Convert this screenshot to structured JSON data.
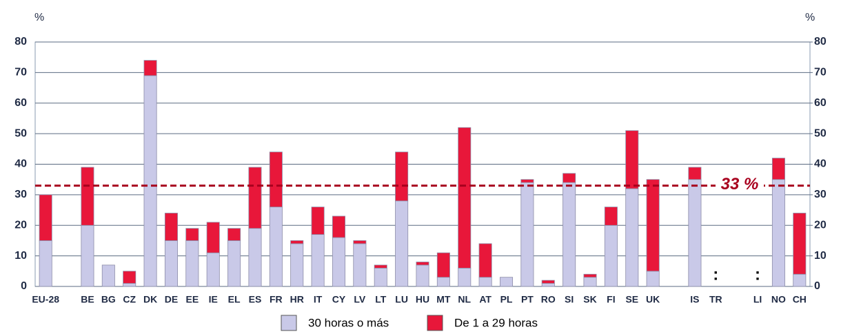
{
  "chart_data": {
    "type": "stacked_bar",
    "y_label": "%",
    "y2_label": "%",
    "categories": [
      "EU-28",
      null,
      "BE",
      "BG",
      "CZ",
      "DK",
      "DE",
      "EE",
      "IE",
      "EL",
      "ES",
      "FR",
      "HR",
      "IT",
      "CY",
      "LV",
      "LT",
      "LU",
      "HU",
      "MT",
      "NL",
      "AT",
      "PL",
      "PT",
      "RO",
      "SI",
      "SK",
      "FI",
      "SE",
      "UK",
      null,
      "IS",
      "TR",
      null,
      "LI",
      "NO",
      "CH"
    ],
    "series": [
      {
        "name": "30 horas o más",
        "color": "#c9c9e8",
        "values": [
          15,
          null,
          20,
          7,
          1,
          69,
          15,
          15,
          11,
          15,
          19,
          26,
          14,
          17,
          16,
          14,
          6,
          28,
          7,
          3,
          6,
          3,
          3,
          34,
          1,
          34,
          3,
          20,
          32,
          5,
          null,
          35,
          null,
          null,
          null,
          35,
          4
        ],
        "value_labels": [
          null,
          null,
          null,
          null,
          null,
          null,
          null,
          null,
          null,
          null,
          null,
          null,
          null,
          null,
          null,
          null,
          null,
          null,
          null,
          null,
          null,
          null,
          null,
          null,
          null,
          null,
          null,
          null,
          null,
          null,
          null,
          null,
          ":",
          null,
          ":",
          null,
          null
        ]
      },
      {
        "name": "De 1 a 29 horas",
        "color": "#e8173a",
        "values": [
          15,
          null,
          19,
          0,
          4,
          5,
          9,
          4,
          10,
          4,
          20,
          18,
          1,
          9,
          7,
          1,
          1,
          16,
          1,
          8,
          46,
          11,
          0,
          1,
          1,
          3,
          1,
          6,
          19,
          30,
          null,
          4,
          null,
          null,
          null,
          7,
          20
        ]
      }
    ],
    "ylim": [
      0,
      80
    ],
    "yticks": [
      0,
      10,
      20,
      30,
      40,
      50,
      60,
      70,
      80
    ],
    "y2lim": [
      0,
      80
    ],
    "y2ticks": [
      0,
      10,
      20,
      30,
      40,
      50,
      60,
      70,
      80
    ],
    "grid": true,
    "reference_line": {
      "value": 33,
      "label": "33 %",
      "color": "#a8001e"
    },
    "legend": "bottom"
  }
}
